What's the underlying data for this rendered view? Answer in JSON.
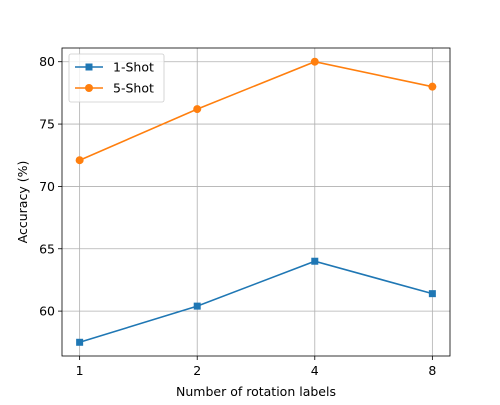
{
  "chart_data": {
    "type": "line",
    "x": [
      "1",
      "2",
      "4",
      "8"
    ],
    "xlabel": "Number of rotation labels",
    "ylabel": "Accuracy (%)",
    "ylim": [
      56.4,
      81.1
    ],
    "yticks": [
      60,
      65,
      70,
      75,
      80
    ],
    "grid": true,
    "legend_position": "top-left",
    "series": [
      {
        "name": "1-Shot",
        "values": [
          57.5,
          60.4,
          64.0,
          61.4
        ],
        "color": "#1f77b4",
        "marker": "square"
      },
      {
        "name": "5-Shot",
        "values": [
          72.1,
          76.2,
          80.0,
          78.0
        ],
        "color": "#ff7f0e",
        "marker": "circle"
      }
    ]
  }
}
